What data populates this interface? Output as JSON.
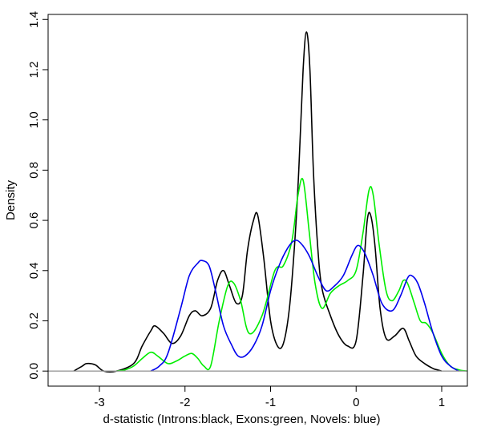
{
  "chart_data": {
    "type": "line",
    "title": "",
    "xlabel": "d-statistic (Introns:black, Exons:green, Novels: blue)",
    "ylabel": "Density",
    "xlim": [
      -3.6,
      1.3
    ],
    "ylim": [
      -0.06,
      1.42
    ],
    "grid": false,
    "legend": "none",
    "xticks": [
      -3,
      -2,
      -1,
      0,
      1
    ],
    "yticks": [
      0.0,
      0.2,
      0.4,
      0.6,
      0.8,
      1.0,
      1.2,
      1.4
    ],
    "xtick_labels": [
      "-3",
      "-2",
      "-1",
      "0",
      "1"
    ],
    "ytick_labels": [
      "0.0",
      "0.2",
      "0.4",
      "0.6",
      "0.8",
      "1.0",
      "1.2",
      "1.4"
    ],
    "baseline": {
      "y": 0,
      "color": "#999999"
    },
    "series": [
      {
        "color": "#000000",
        "x": [
          -3.3,
          -3.2,
          -3.15,
          -3.05,
          -2.95,
          -2.8,
          -2.6,
          -2.5,
          -2.4,
          -2.35,
          -2.25,
          -2.15,
          -2.05,
          -1.95,
          -1.88,
          -1.8,
          -1.7,
          -1.62,
          -1.55,
          -1.48,
          -1.4,
          -1.33,
          -1.27,
          -1.2,
          -1.15,
          -1.08,
          -1.0,
          -0.92,
          -0.85,
          -0.78,
          -0.72,
          -0.67,
          -0.62,
          -0.58,
          -0.54,
          -0.5,
          -0.45,
          -0.4,
          -0.3,
          -0.2,
          -0.1,
          0.0,
          0.08,
          0.13,
          0.17,
          0.22,
          0.28,
          0.35,
          0.45,
          0.55,
          0.62,
          0.7,
          0.8,
          0.9,
          0.95,
          1.0
        ],
        "y": [
          0.0,
          0.02,
          0.03,
          0.025,
          0.0,
          0.0,
          0.03,
          0.1,
          0.16,
          0.18,
          0.15,
          0.11,
          0.14,
          0.22,
          0.24,
          0.22,
          0.25,
          0.36,
          0.4,
          0.34,
          0.27,
          0.3,
          0.48,
          0.6,
          0.62,
          0.45,
          0.2,
          0.1,
          0.11,
          0.25,
          0.5,
          0.8,
          1.2,
          1.35,
          1.2,
          0.8,
          0.5,
          0.33,
          0.22,
          0.14,
          0.1,
          0.12,
          0.38,
          0.6,
          0.62,
          0.5,
          0.25,
          0.13,
          0.14,
          0.17,
          0.12,
          0.06,
          0.03,
          0.01,
          0.005,
          0.0
        ]
      },
      {
        "color": "#00ee00",
        "x": [
          -2.8,
          -2.7,
          -2.6,
          -2.5,
          -2.4,
          -2.32,
          -2.2,
          -2.1,
          -2.0,
          -1.92,
          -1.85,
          -1.78,
          -1.7,
          -1.6,
          -1.5,
          -1.43,
          -1.35,
          -1.25,
          -1.1,
          -0.95,
          -0.85,
          -0.75,
          -0.68,
          -0.62,
          -0.55,
          -0.48,
          -0.4,
          -0.3,
          -0.2,
          -0.1,
          0.0,
          0.08,
          0.15,
          0.2,
          0.27,
          0.35,
          0.42,
          0.5,
          0.55,
          0.6,
          0.68,
          0.75,
          0.82,
          0.9,
          1.0,
          1.1,
          1.2,
          1.3
        ],
        "y": [
          0.0,
          0.005,
          0.02,
          0.05,
          0.075,
          0.06,
          0.03,
          0.04,
          0.06,
          0.07,
          0.05,
          0.02,
          0.02,
          0.2,
          0.34,
          0.35,
          0.28,
          0.15,
          0.22,
          0.4,
          0.42,
          0.52,
          0.7,
          0.76,
          0.56,
          0.35,
          0.25,
          0.31,
          0.34,
          0.36,
          0.4,
          0.55,
          0.72,
          0.7,
          0.5,
          0.32,
          0.28,
          0.32,
          0.36,
          0.35,
          0.27,
          0.2,
          0.19,
          0.15,
          0.07,
          0.02,
          0.005,
          0.0
        ]
      },
      {
        "color": "#0000ee",
        "x": [
          -2.4,
          -2.3,
          -2.2,
          -2.05,
          -1.95,
          -1.85,
          -1.8,
          -1.72,
          -1.65,
          -1.55,
          -1.45,
          -1.38,
          -1.3,
          -1.2,
          -1.1,
          -1.0,
          -0.9,
          -0.8,
          -0.72,
          -0.65,
          -0.55,
          -0.45,
          -0.35,
          -0.25,
          -0.15,
          -0.05,
          0.02,
          0.1,
          0.2,
          0.3,
          0.42,
          0.52,
          0.6,
          0.65,
          0.72,
          0.8,
          0.9,
          1.0,
          1.1,
          1.2
        ],
        "y": [
          0.0,
          0.02,
          0.07,
          0.25,
          0.38,
          0.43,
          0.44,
          0.42,
          0.33,
          0.18,
          0.1,
          0.06,
          0.06,
          0.1,
          0.18,
          0.32,
          0.42,
          0.49,
          0.52,
          0.51,
          0.46,
          0.38,
          0.32,
          0.34,
          0.38,
          0.46,
          0.5,
          0.47,
          0.38,
          0.27,
          0.24,
          0.3,
          0.37,
          0.38,
          0.35,
          0.27,
          0.15,
          0.06,
          0.02,
          0.0
        ]
      }
    ]
  }
}
